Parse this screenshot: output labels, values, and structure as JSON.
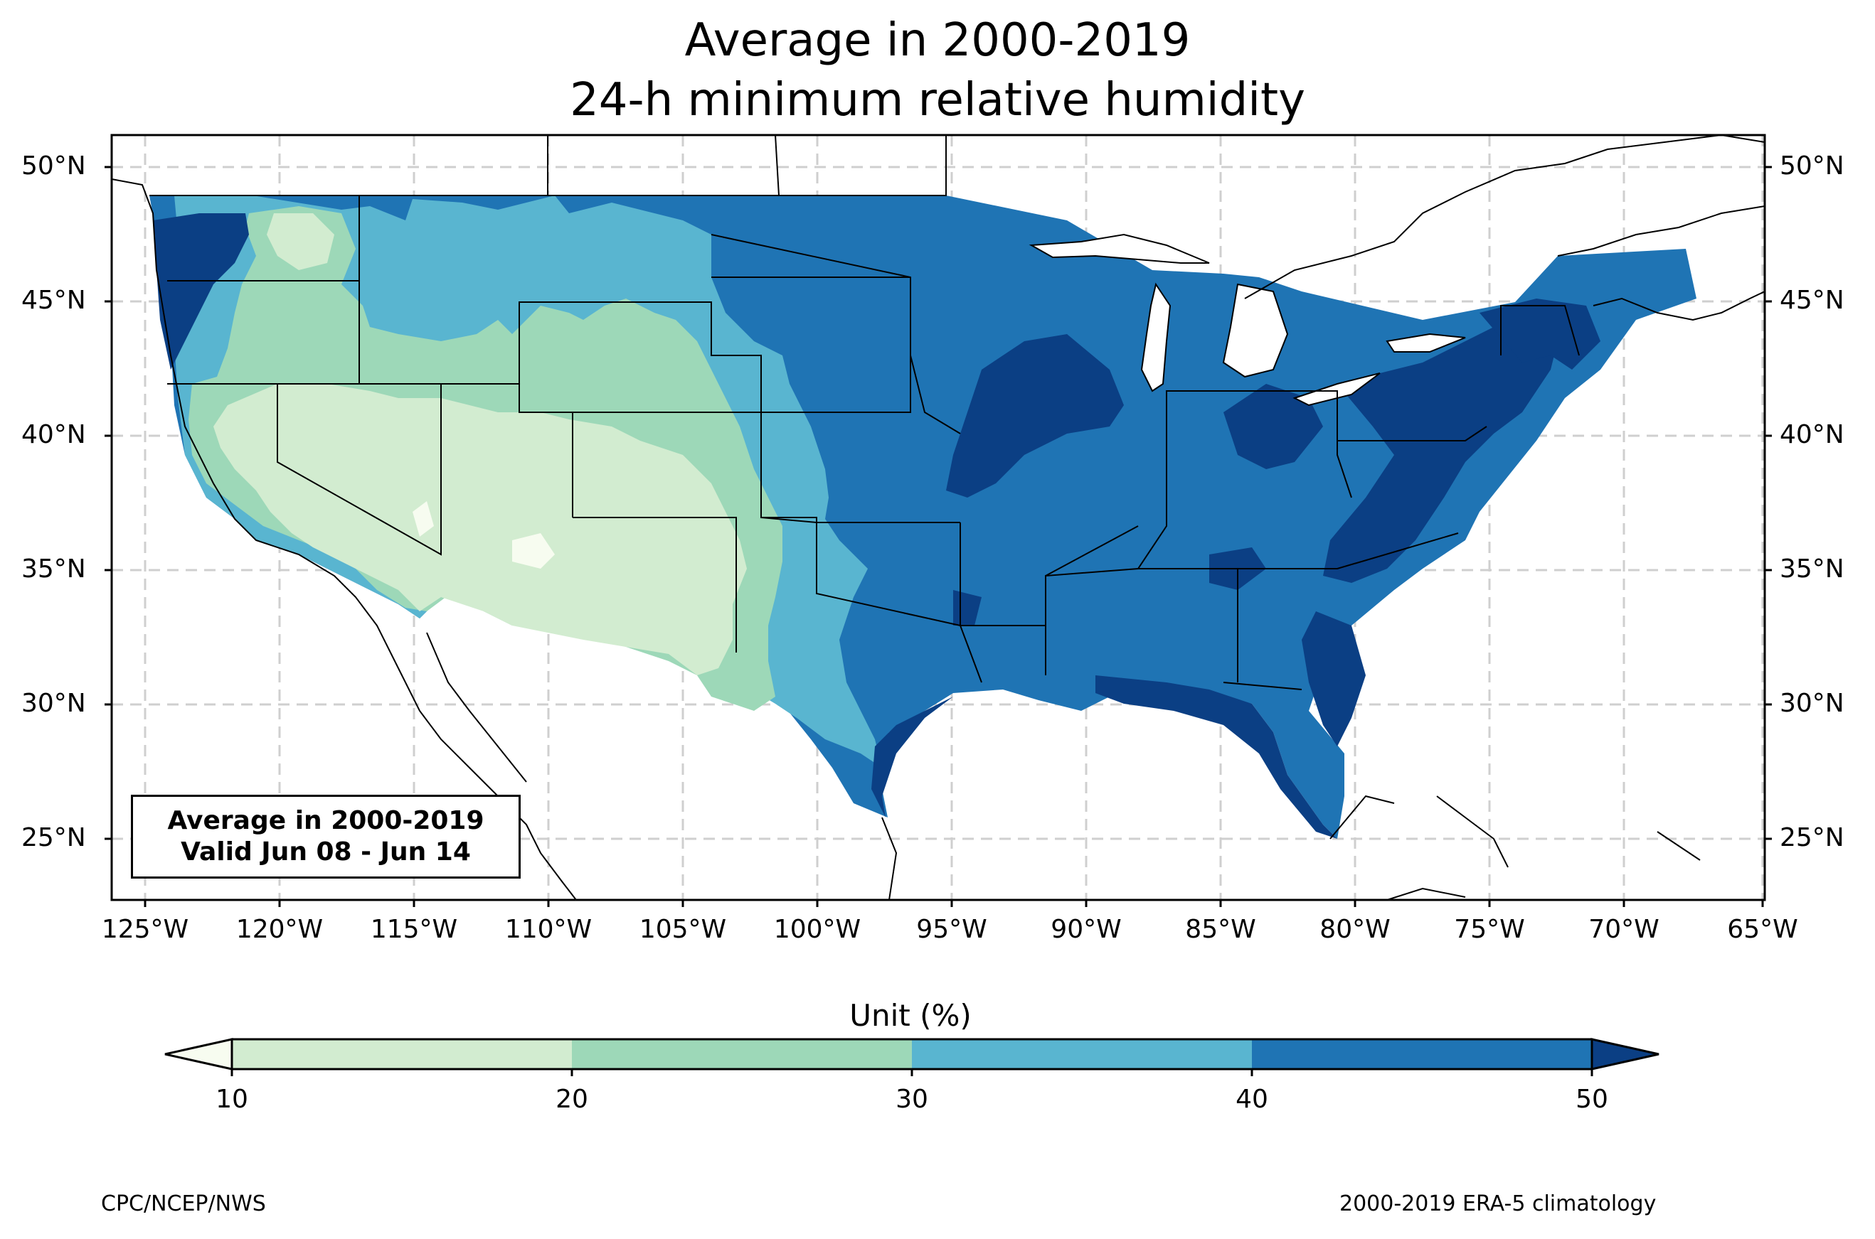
{
  "title_line1": "Average in 2000-2019",
  "title_line2": "24-h minimum relative humidity",
  "latitude_labels": [
    "50°N",
    "45°N",
    "40°N",
    "35°N",
    "30°N",
    "25°N"
  ],
  "longitude_labels": [
    "125°W",
    "120°W",
    "115°W",
    "110°W",
    "105°W",
    "100°W",
    "95°W",
    "90°W",
    "85°W",
    "80°W",
    "75°W",
    "70°W",
    "65°W"
  ],
  "info_box": {
    "line1": "Average in 2000-2019",
    "line2": "Valid Jun 08 - Jun 14"
  },
  "colorbar": {
    "title": "Unit (%)",
    "ticks": [
      "10",
      "20",
      "30",
      "40",
      "50"
    ],
    "colors": {
      "below_10": "#f7fcf0",
      "10_20": "#d2ecd0",
      "20_30": "#9dd8b8",
      "30_40": "#59b5d0",
      "40_50": "#1f74b4",
      "above_50": "#0b3f84"
    }
  },
  "credits": {
    "left": "CPC/NCEP/NWS",
    "right": "2000-2019 ERA-5 climatology"
  }
}
